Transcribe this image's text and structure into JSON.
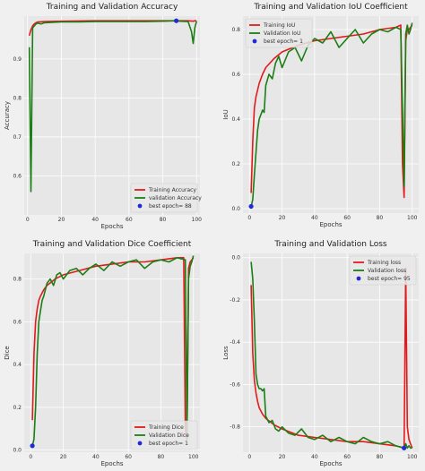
{
  "colors": {
    "train": "#e31a1c",
    "val": "#1a7f14",
    "best": "#1f2bd6",
    "plot_bg": "#e7e7e7",
    "grid": "#ffffff"
  },
  "chart_data": [
    {
      "type": "line",
      "title": "Training and Validation Accuracy",
      "xlabel": "Epochs",
      "ylabel": "Accuracy",
      "xlim": [
        -2,
        102
      ],
      "ylim": [
        0.5,
        1.01
      ],
      "xticks": [
        "0",
        "20",
        "40",
        "60",
        "80",
        "100"
      ],
      "yticks": [
        {
          "v": 0.6,
          "label": "0.6"
        },
        {
          "v": 0.7,
          "label": "0.7"
        },
        {
          "v": 0.8,
          "label": "0.8"
        },
        {
          "v": 0.9,
          "label": "0.9"
        }
      ],
      "legend_position": "bottom-right",
      "grid": true,
      "series": [
        {
          "name": "Training Accuracy",
          "color": "train",
          "x": [
            1,
            2,
            3,
            4,
            5,
            6,
            10,
            20,
            40,
            60,
            80,
            88,
            95,
            98,
            99,
            100
          ],
          "y": [
            0.96,
            0.975,
            0.985,
            0.99,
            0.993,
            0.995,
            0.996,
            0.997,
            0.998,
            0.998,
            0.998,
            0.998,
            0.998,
            0.997,
            0.998,
            0.998
          ]
        },
        {
          "name": "validation Accuracy",
          "color": "val",
          "x": [
            1,
            2,
            3,
            4,
            5,
            6,
            8,
            10,
            15,
            20,
            30,
            40,
            50,
            60,
            70,
            80,
            88,
            90,
            95,
            97,
            98,
            99,
            100
          ],
          "y": [
            0.93,
            0.56,
            0.98,
            0.985,
            0.99,
            0.992,
            0.99,
            0.993,
            0.994,
            0.995,
            0.995,
            0.996,
            0.996,
            0.996,
            0.996,
            0.997,
            0.998,
            0.997,
            0.996,
            0.97,
            0.94,
            0.98,
            0.997
          ]
        }
      ],
      "best": {
        "name": "best epoch= 88",
        "x": 88,
        "y": 0.998
      }
    },
    {
      "type": "line",
      "title": "Training and Validation IoU Coefficient",
      "xlabel": "Epochs",
      "ylabel": "IoU",
      "xlim": [
        -4,
        104
      ],
      "ylim": [
        -0.02,
        0.86
      ],
      "xticks": [
        "0",
        "20",
        "40",
        "60",
        "80",
        "100"
      ],
      "yticks": [
        {
          "v": 0.0,
          "label": "0.0"
        },
        {
          "v": 0.2,
          "label": "0.2"
        },
        {
          "v": 0.4,
          "label": "0.4"
        },
        {
          "v": 0.6,
          "label": "0.6"
        },
        {
          "v": 0.8,
          "label": "0.8"
        }
      ],
      "legend_position": "top-left",
      "grid": true,
      "series": [
        {
          "name": "Training IoU",
          "color": "train",
          "x": [
            1,
            2,
            3,
            4,
            5,
            6,
            8,
            10,
            15,
            20,
            30,
            40,
            50,
            60,
            70,
            80,
            90,
            93,
            94,
            95,
            96,
            97,
            98,
            99,
            100
          ],
          "y": [
            0.07,
            0.3,
            0.45,
            0.5,
            0.53,
            0.56,
            0.6,
            0.63,
            0.67,
            0.7,
            0.73,
            0.75,
            0.76,
            0.77,
            0.78,
            0.8,
            0.81,
            0.82,
            0.2,
            0.05,
            0.75,
            0.8,
            0.8,
            0.81,
            0.82
          ]
        },
        {
          "name": "Validation IoU",
          "color": "val",
          "x": [
            1,
            2,
            3,
            4,
            5,
            6,
            7,
            8,
            9,
            10,
            12,
            14,
            16,
            18,
            20,
            24,
            28,
            32,
            36,
            40,
            45,
            50,
            55,
            60,
            65,
            70,
            75,
            80,
            85,
            90,
            93,
            95,
            96,
            97,
            98,
            99,
            100
          ],
          "y": [
            0.01,
            0.04,
            0.15,
            0.25,
            0.35,
            0.4,
            0.42,
            0.44,
            0.43,
            0.55,
            0.6,
            0.58,
            0.65,
            0.68,
            0.63,
            0.7,
            0.72,
            0.66,
            0.73,
            0.76,
            0.74,
            0.79,
            0.72,
            0.76,
            0.8,
            0.74,
            0.78,
            0.8,
            0.79,
            0.81,
            0.8,
            0.1,
            0.78,
            0.82,
            0.78,
            0.8,
            0.83
          ]
        }
      ],
      "best": {
        "name": "best epoch= 1",
        "x": 1,
        "y": 0.01
      }
    },
    {
      "type": "line",
      "title": "Training and Validation Dice Coefficient",
      "xlabel": "Epochs",
      "ylabel": "Dice",
      "xlim": [
        -4,
        104
      ],
      "ylim": [
        -0.01,
        0.92
      ],
      "xticks": [
        "0",
        "20",
        "40",
        "60",
        "80",
        "100"
      ],
      "yticks": [
        {
          "v": 0.0,
          "label": "0.0"
        },
        {
          "v": 0.2,
          "label": "0.2"
        },
        {
          "v": 0.4,
          "label": "0.4"
        },
        {
          "v": 0.6,
          "label": "0.6"
        },
        {
          "v": 0.8,
          "label": "0.8"
        }
      ],
      "legend_position": "bottom-right",
      "grid": true,
      "series": [
        {
          "name": "Training Dice",
          "color": "train",
          "x": [
            1,
            2,
            3,
            4,
            5,
            6,
            8,
            10,
            15,
            20,
            30,
            40,
            50,
            60,
            70,
            80,
            90,
            94,
            95,
            96,
            97,
            98,
            99,
            100
          ],
          "y": [
            0.14,
            0.45,
            0.6,
            0.66,
            0.7,
            0.72,
            0.75,
            0.77,
            0.8,
            0.82,
            0.84,
            0.86,
            0.87,
            0.88,
            0.88,
            0.89,
            0.9,
            0.9,
            0.1,
            0.05,
            0.85,
            0.88,
            0.89,
            0.9
          ]
        },
        {
          "name": "Validation Dice",
          "color": "val",
          "x": [
            1,
            2,
            3,
            4,
            5,
            6,
            7,
            8,
            9,
            10,
            12,
            14,
            16,
            18,
            20,
            24,
            28,
            32,
            36,
            40,
            45,
            50,
            55,
            60,
            65,
            70,
            75,
            80,
            85,
            90,
            95,
            96,
            97,
            98,
            99,
            100
          ],
          "y": [
            0.02,
            0.05,
            0.2,
            0.45,
            0.6,
            0.65,
            0.7,
            0.72,
            0.75,
            0.78,
            0.8,
            0.77,
            0.82,
            0.83,
            0.8,
            0.84,
            0.85,
            0.82,
            0.85,
            0.87,
            0.84,
            0.88,
            0.86,
            0.88,
            0.89,
            0.85,
            0.88,
            0.89,
            0.88,
            0.9,
            0.89,
            0.05,
            0.8,
            0.86,
            0.88,
            0.91
          ]
        }
      ],
      "best": {
        "name": "best epoch= 1",
        "x": 1,
        "y": 0.02
      }
    },
    {
      "type": "line",
      "title": "Training and Validation Loss",
      "xlabel": "Epochs",
      "ylabel": "Loss",
      "xlim": [
        -4,
        104
      ],
      "ylim": [
        -0.92,
        0.02
      ],
      "xticks": [
        "0",
        "20",
        "40",
        "60",
        "80",
        "100"
      ],
      "yticks": [
        {
          "v": 0.0,
          "label": "0.0"
        },
        {
          "v": -0.2,
          "label": "-0.2"
        },
        {
          "v": -0.4,
          "label": "-0.4"
        },
        {
          "v": -0.6,
          "label": "-0.6"
        },
        {
          "v": -0.8,
          "label": "-0.8"
        }
      ],
      "legend_position": "top-right",
      "grid": true,
      "series": [
        {
          "name": "Training loss",
          "color": "train",
          "x": [
            1,
            2,
            3,
            4,
            5,
            6,
            8,
            10,
            15,
            20,
            30,
            40,
            50,
            60,
            70,
            80,
            90,
            95,
            96,
            97,
            98,
            99,
            100
          ],
          "y": [
            -0.13,
            -0.45,
            -0.58,
            -0.64,
            -0.68,
            -0.71,
            -0.74,
            -0.76,
            -0.79,
            -0.81,
            -0.84,
            -0.85,
            -0.86,
            -0.87,
            -0.87,
            -0.88,
            -0.89,
            -0.9,
            -0.05,
            -0.8,
            -0.86,
            -0.88,
            -0.9
          ]
        },
        {
          "name": "Validation loss",
          "color": "val",
          "x": [
            1,
            2,
            3,
            4,
            5,
            6,
            7,
            8,
            9,
            10,
            12,
            14,
            16,
            18,
            20,
            24,
            28,
            32,
            36,
            40,
            45,
            50,
            55,
            60,
            65,
            70,
            75,
            80,
            85,
            90,
            95,
            96,
            97,
            98,
            99,
            100
          ],
          "y": [
            -0.02,
            -0.1,
            -0.3,
            -0.55,
            -0.6,
            -0.62,
            -0.62,
            -0.63,
            -0.62,
            -0.75,
            -0.78,
            -0.77,
            -0.81,
            -0.82,
            -0.8,
            -0.83,
            -0.84,
            -0.81,
            -0.85,
            -0.86,
            -0.84,
            -0.87,
            -0.85,
            -0.87,
            -0.88,
            -0.85,
            -0.87,
            -0.88,
            -0.87,
            -0.89,
            -0.9,
            -0.88,
            -0.9,
            -0.89,
            -0.9,
            -0.9
          ]
        }
      ],
      "best": {
        "name": "best epoch= 95",
        "x": 95,
        "y": -0.9
      }
    }
  ]
}
